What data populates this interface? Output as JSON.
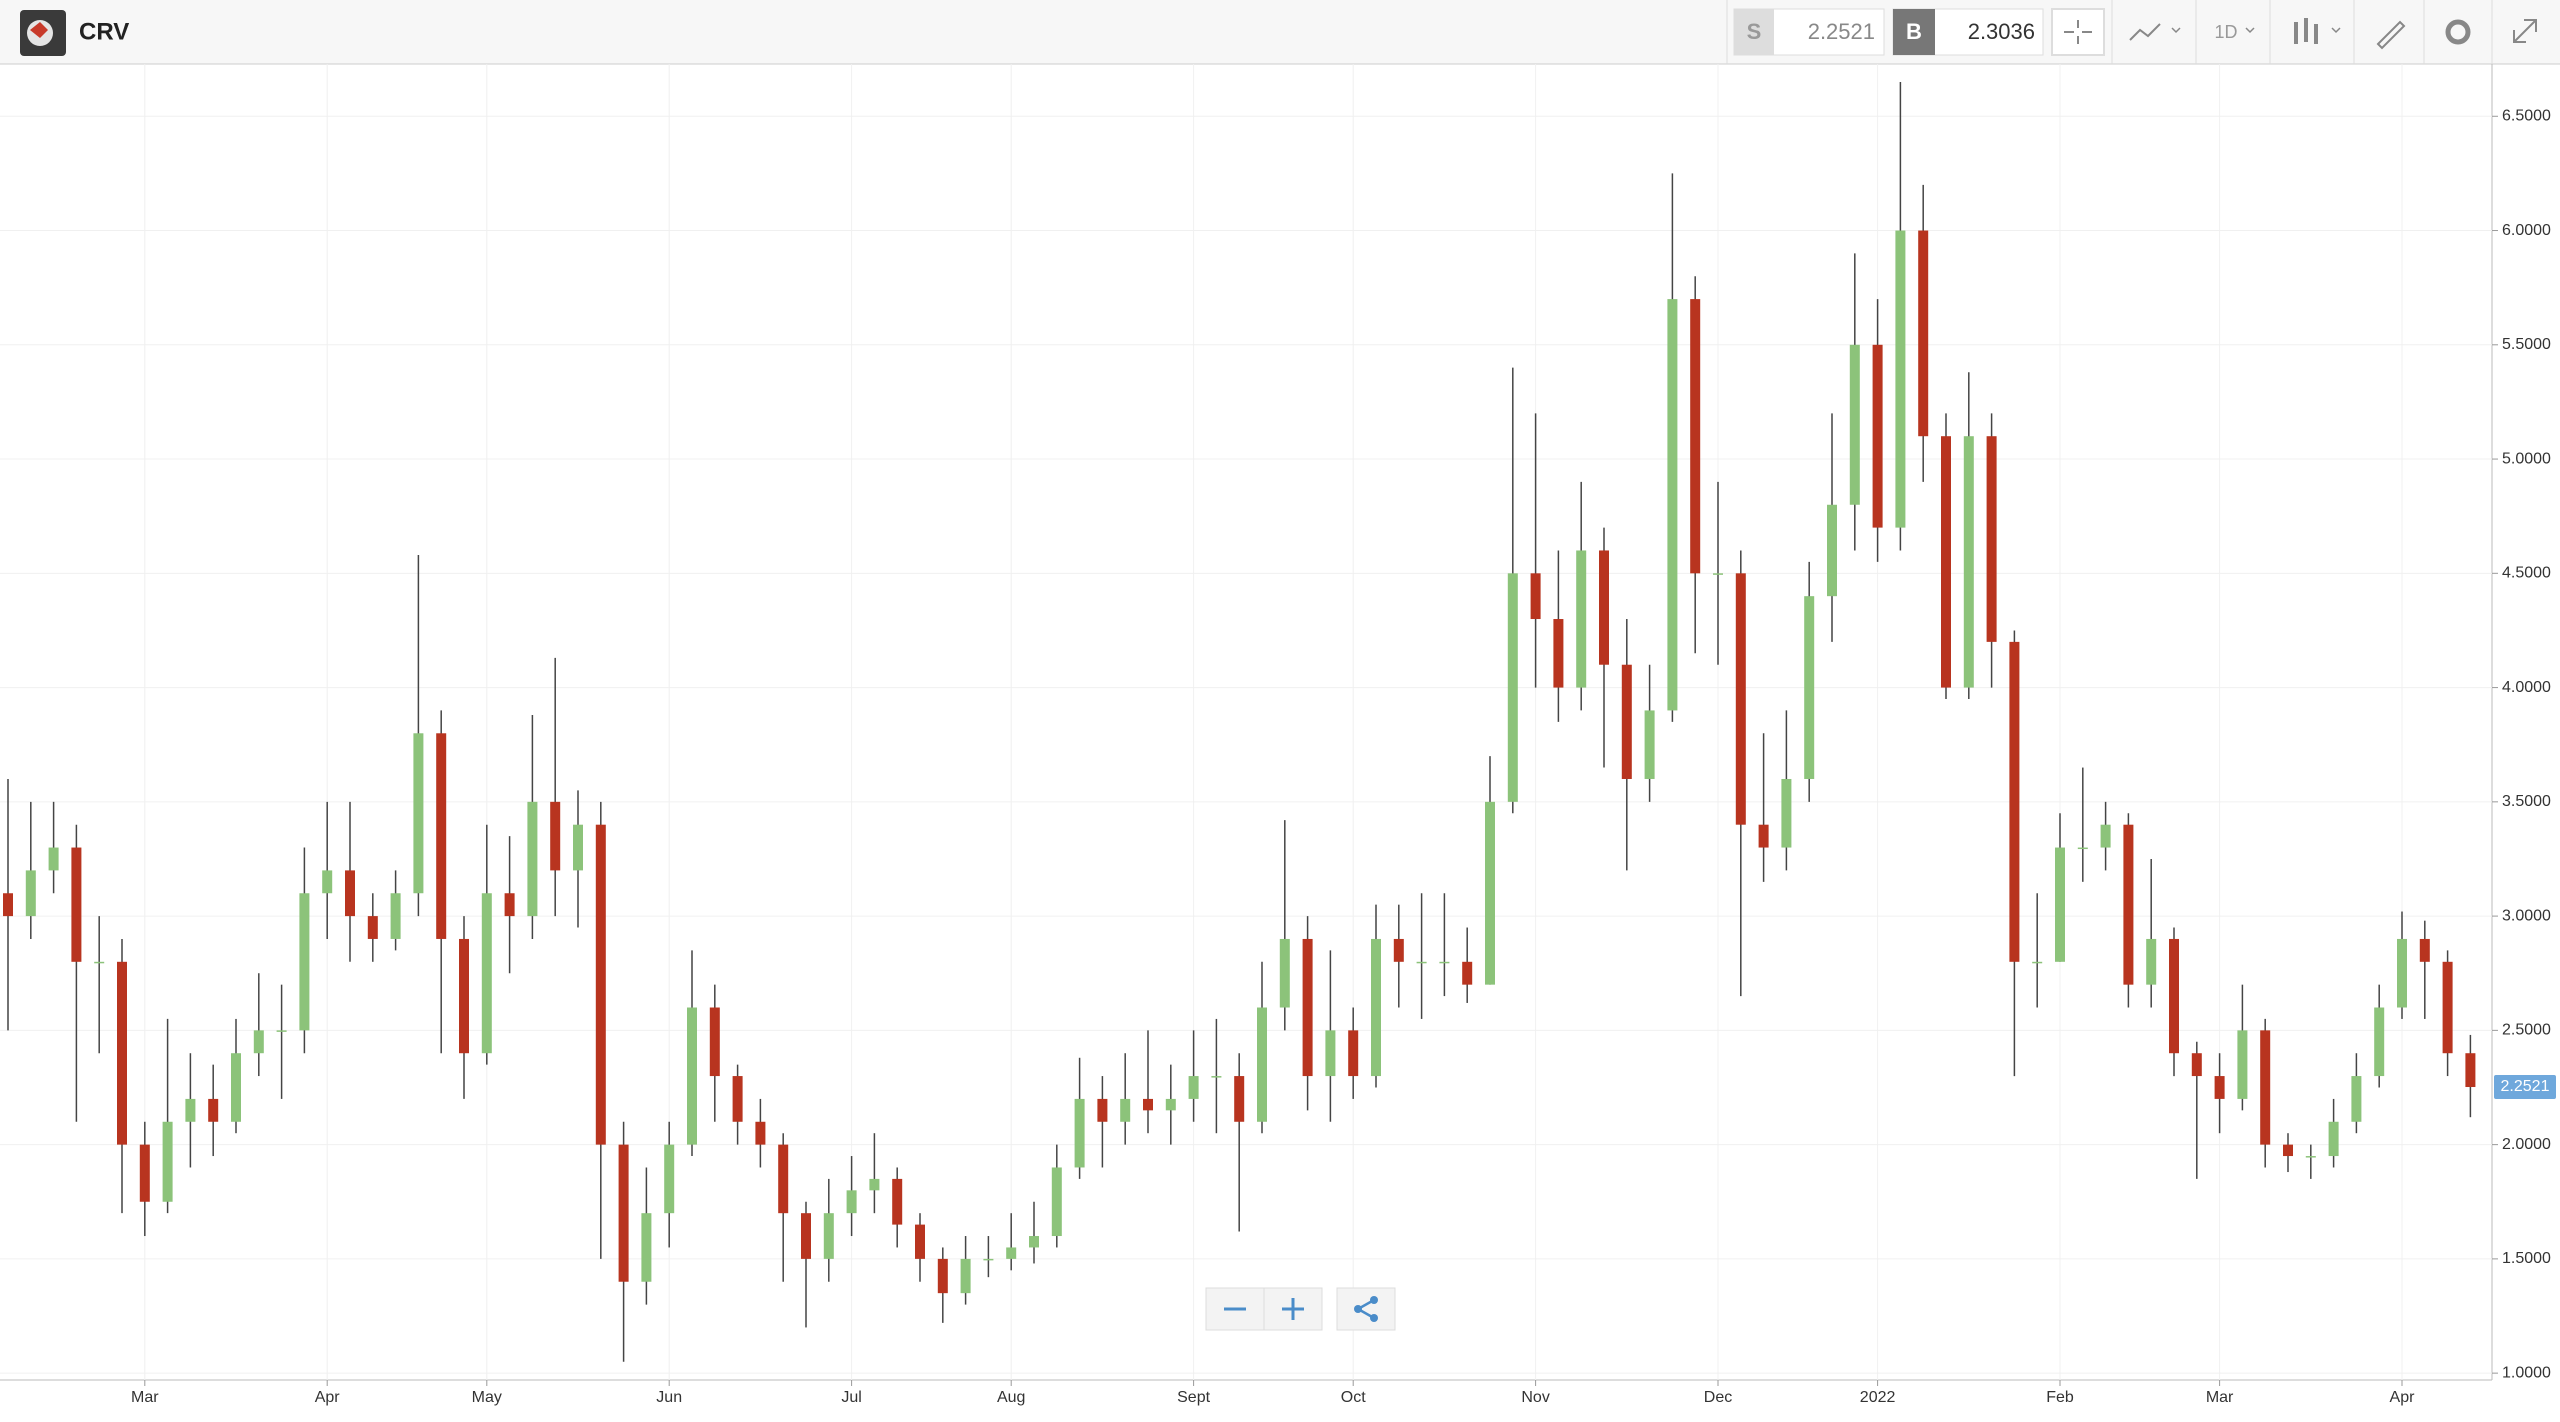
{
  "toolbar": {
    "symbol": "CRV",
    "sell_label": "S",
    "sell_price": "2.2521",
    "buy_label": "B",
    "buy_price": "2.3036",
    "interval": "1D"
  },
  "chart_data": {
    "type": "candlestick",
    "categories": [
      null,
      null,
      null,
      null,
      null,
      null,
      "Mar",
      null,
      null,
      null,
      null,
      null,
      null,
      null,
      "Apr",
      null,
      null,
      null,
      null,
      null,
      null,
      "May",
      null,
      null,
      null,
      null,
      null,
      null,
      null,
      "Jun",
      null,
      null,
      null,
      null,
      null,
      null,
      null,
      "Jul",
      null,
      null,
      null,
      null,
      null,
      null,
      "Aug",
      null,
      null,
      null,
      null,
      null,
      null,
      null,
      "Sept",
      null,
      null,
      null,
      null,
      null,
      null,
      "Oct",
      null,
      null,
      null,
      null,
      null,
      null,
      null,
      "Nov",
      null,
      null,
      null,
      null,
      null,
      null,
      null,
      "Dec",
      null,
      null,
      null,
      null,
      null,
      null,
      "2022",
      null,
      null,
      null,
      null,
      null,
      null,
      null,
      "Feb",
      null,
      null,
      null,
      null,
      null,
      null,
      "Mar",
      null,
      null,
      null,
      null,
      null,
      null,
      null,
      "Apr",
      null,
      null,
      null
    ],
    "open": [
      3.1,
      3.0,
      3.2,
      3.3,
      2.8,
      2.8,
      2.0,
      1.75,
      2.1,
      2.2,
      2.1,
      2.4,
      2.5,
      2.5,
      3.1,
      3.2,
      3.0,
      2.9,
      3.1,
      3.8,
      2.9,
      2.4,
      3.1,
      3.0,
      3.5,
      3.2,
      3.4,
      2.0,
      1.4,
      1.7,
      2.0,
      2.6,
      2.3,
      2.1,
      2.0,
      1.7,
      1.5,
      1.7,
      1.8,
      1.85,
      1.65,
      1.5,
      1.35,
      1.5,
      1.5,
      1.55,
      1.6,
      1.9,
      2.2,
      2.1,
      2.2,
      2.15,
      2.2,
      2.3,
      2.3,
      2.1,
      2.6,
      2.9,
      2.3,
      2.5,
      2.3,
      2.9,
      2.8,
      2.8,
      2.8,
      2.7,
      3.5,
      4.5,
      4.3,
      4.0,
      4.6,
      4.1,
      3.6,
      3.9,
      5.7,
      4.5,
      4.5,
      3.4,
      3.3,
      3.6,
      4.4,
      4.8,
      5.5,
      4.7,
      6.0,
      5.1,
      4.0,
      5.1,
      4.2,
      2.8,
      2.8,
      3.3,
      3.3,
      3.4,
      2.7,
      2.9,
      2.4,
      2.3,
      2.2,
      2.5,
      2.0,
      1.95,
      1.95,
      2.1,
      2.3,
      2.6,
      2.9,
      2.8,
      2.4
    ],
    "high": [
      3.6,
      3.5,
      3.5,
      3.4,
      3.0,
      2.9,
      2.1,
      2.55,
      2.4,
      2.35,
      2.55,
      2.75,
      2.7,
      3.3,
      3.5,
      3.5,
      3.1,
      3.2,
      4.58,
      3.9,
      3.0,
      3.4,
      3.35,
      3.88,
      4.13,
      3.55,
      3.5,
      2.1,
      1.9,
      2.1,
      2.85,
      2.7,
      2.35,
      2.2,
      2.05,
      1.75,
      1.85,
      1.95,
      2.05,
      1.9,
      1.7,
      1.55,
      1.6,
      1.6,
      1.7,
      1.75,
      2.0,
      2.38,
      2.3,
      2.4,
      2.5,
      2.35,
      2.5,
      2.55,
      2.4,
      2.8,
      3.42,
      3.0,
      2.85,
      2.6,
      3.05,
      3.05,
      3.1,
      3.1,
      2.95,
      3.7,
      5.4,
      5.2,
      4.6,
      4.9,
      4.7,
      4.3,
      4.1,
      6.25,
      5.8,
      4.9,
      4.6,
      3.8,
      3.9,
      4.55,
      5.2,
      5.9,
      5.7,
      6.65,
      6.2,
      5.2,
      5.38,
      5.2,
      4.25,
      3.1,
      3.45,
      3.65,
      3.5,
      3.45,
      3.25,
      2.95,
      2.45,
      2.4,
      2.7,
      2.55,
      2.05,
      2.0,
      2.2,
      2.4,
      2.7,
      3.02,
      2.98,
      2.85,
      2.48
    ],
    "low": [
      2.5,
      2.9,
      3.1,
      2.1,
      2.4,
      1.7,
      1.6,
      1.7,
      1.9,
      1.95,
      2.05,
      2.3,
      2.2,
      2.4,
      2.9,
      2.8,
      2.8,
      2.85,
      3.0,
      2.4,
      2.2,
      2.35,
      2.75,
      2.9,
      3.0,
      2.95,
      1.5,
      1.05,
      1.3,
      1.55,
      1.95,
      2.1,
      2.0,
      1.9,
      1.4,
      1.2,
      1.4,
      1.6,
      1.7,
      1.55,
      1.4,
      1.22,
      1.3,
      1.42,
      1.45,
      1.48,
      1.55,
      1.85,
      1.9,
      2.0,
      2.05,
      2.0,
      2.1,
      2.05,
      1.62,
      2.05,
      2.5,
      2.15,
      2.1,
      2.2,
      2.25,
      2.6,
      2.55,
      2.65,
      2.62,
      2.7,
      3.45,
      4.0,
      3.85,
      3.9,
      3.65,
      3.2,
      3.5,
      3.85,
      4.15,
      4.1,
      2.65,
      3.15,
      3.2,
      3.5,
      4.2,
      4.6,
      4.55,
      4.6,
      4.9,
      3.95,
      3.95,
      4.0,
      2.3,
      2.6,
      2.8,
      3.15,
      3.2,
      2.6,
      2.6,
      2.3,
      1.85,
      2.05,
      2.15,
      1.9,
      1.88,
      1.85,
      1.9,
      2.05,
      2.25,
      2.55,
      2.55,
      2.3,
      2.12
    ],
    "close": [
      3.0,
      3.2,
      3.3,
      2.8,
      2.8,
      2.0,
      1.75,
      2.1,
      2.2,
      2.1,
      2.4,
      2.5,
      2.5,
      3.1,
      3.2,
      3.0,
      2.9,
      3.1,
      3.8,
      2.9,
      2.4,
      3.1,
      3.0,
      3.5,
      3.2,
      3.4,
      2.0,
      1.4,
      1.7,
      2.0,
      2.6,
      2.3,
      2.1,
      2.0,
      1.7,
      1.5,
      1.7,
      1.8,
      1.85,
      1.65,
      1.5,
      1.35,
      1.5,
      1.5,
      1.55,
      1.6,
      1.9,
      2.2,
      2.1,
      2.2,
      2.15,
      2.2,
      2.3,
      2.3,
      2.1,
      2.6,
      2.9,
      2.3,
      2.5,
      2.3,
      2.9,
      2.8,
      2.8,
      2.8,
      2.7,
      3.5,
      4.5,
      4.3,
      4.0,
      4.6,
      4.1,
      3.6,
      3.9,
      5.7,
      4.5,
      4.5,
      3.4,
      3.3,
      3.6,
      4.4,
      4.8,
      5.5,
      4.7,
      6.0,
      5.1,
      4.0,
      5.1,
      4.2,
      2.8,
      2.8,
      3.3,
      3.3,
      3.4,
      2.7,
      2.9,
      2.4,
      2.3,
      2.2,
      2.5,
      2.0,
      1.95,
      1.95,
      2.1,
      2.3,
      2.6,
      2.9,
      2.8,
      2.4,
      2.2521
    ],
    "up_color": "#8cc37a",
    "down_color": "#b8341f",
    "ylim": [
      0.97,
      6.72
    ],
    "yticks": [
      {
        "value": 1,
        "label": "1.0000"
      },
      {
        "value": 1.5,
        "label": "1.5000"
      },
      {
        "value": 2,
        "label": "2.0000"
      },
      {
        "value": 2.5,
        "label": "2.5000"
      },
      {
        "value": 3,
        "label": "3.0000"
      },
      {
        "value": 3.5,
        "label": "3.5000"
      },
      {
        "value": 4,
        "label": "4.0000"
      },
      {
        "value": 4.5,
        "label": "4.5000"
      },
      {
        "value": 5,
        "label": "5.0000"
      },
      {
        "value": 5.5,
        "label": "5.5000"
      },
      {
        "value": 6,
        "label": "6.0000"
      },
      {
        "value": 6.5,
        "label": "6.5000"
      }
    ],
    "grid": true
  }
}
